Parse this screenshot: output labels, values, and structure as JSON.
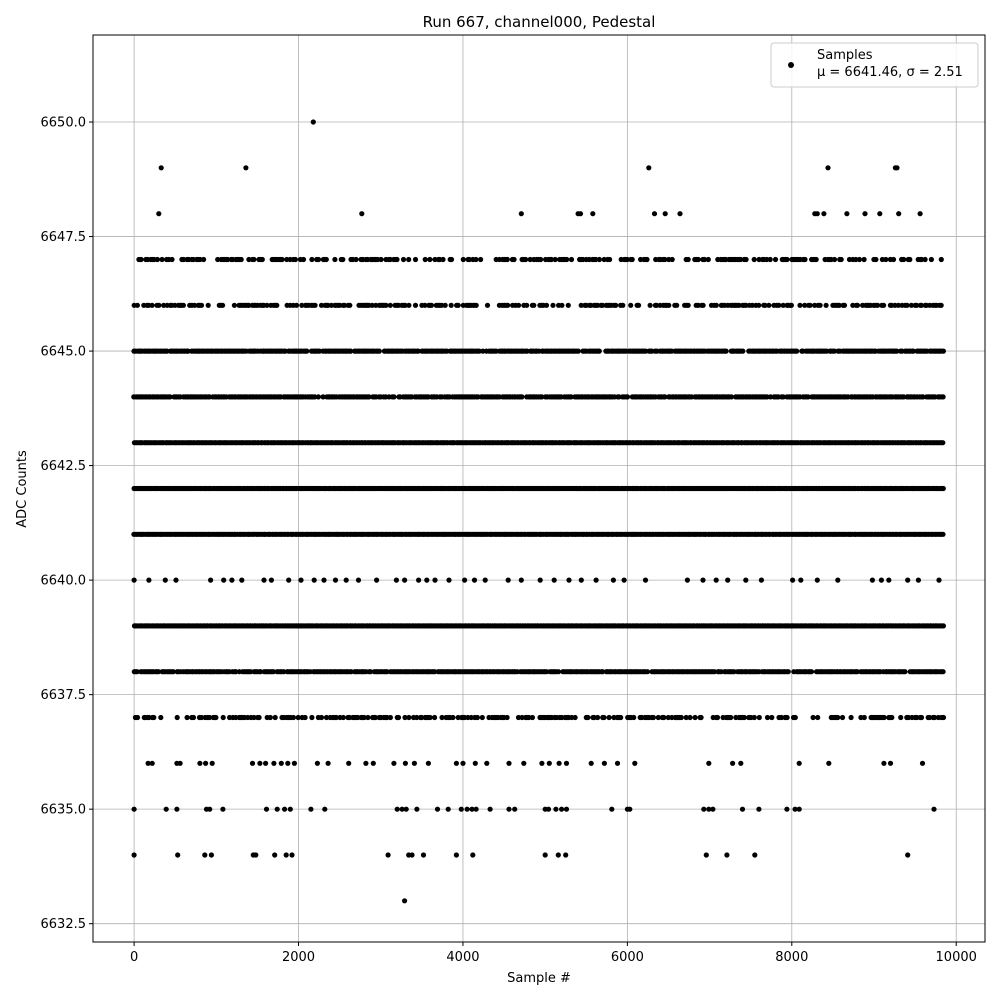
{
  "chart_data": {
    "type": "scatter",
    "title": "Run 667, channel000, Pedestal",
    "xlabel": "Sample #",
    "ylabel": "ADC Counts",
    "xlim": [
      -500,
      10350
    ],
    "ylim": [
      6632.1,
      6651.9
    ],
    "xticks": [
      0,
      2000,
      4000,
      6000,
      8000,
      10000
    ],
    "xtick_labels": [
      "0",
      "2000",
      "4000",
      "6000",
      "8000",
      "10000"
    ],
    "yticks": [
      6632.5,
      6635.0,
      6637.5,
      6640.0,
      6642.5,
      6645.0,
      6647.5,
      6650.0
    ],
    "ytick_labels": [
      "6632.5",
      "6635.0",
      "6637.5",
      "6640.0",
      "6642.5",
      "6645.0",
      "6647.5",
      "6650.0"
    ],
    "grid": true,
    "legend_position": "top-right",
    "marker_color": "#000000",
    "series": [
      {
        "name": "Samples",
        "legend_line2": "μ = 6641.46, σ = 2.51",
        "points": [
          [
            2180,
            6650
          ],
          [
            330,
            6649
          ],
          [
            1360,
            6649
          ],
          [
            6260,
            6649
          ],
          [
            8440,
            6649
          ],
          [
            9260,
            6649
          ],
          [
            9280,
            6649
          ],
          [
            300,
            6648
          ],
          [
            2770,
            6648
          ],
          [
            4710,
            6648
          ],
          [
            5400,
            6648
          ],
          [
            5430,
            6648
          ],
          [
            5580,
            6648
          ],
          [
            6330,
            6648
          ],
          [
            6460,
            6648
          ],
          [
            6640,
            6648
          ],
          [
            8280,
            6648
          ],
          [
            8310,
            6648
          ],
          [
            8390,
            6648
          ],
          [
            8670,
            6648
          ],
          [
            8890,
            6648
          ],
          [
            9070,
            6648
          ],
          [
            9300,
            6648
          ],
          [
            9560,
            6648
          ],
          [
            3290,
            6633
          ],
          [
            0,
            6634
          ],
          [
            530,
            6634
          ],
          [
            860,
            6634
          ],
          [
            940,
            6634
          ],
          [
            1450,
            6634
          ],
          [
            1480,
            6634
          ],
          [
            1710,
            6634
          ],
          [
            1850,
            6634
          ],
          [
            1920,
            6634
          ],
          [
            3090,
            6634
          ],
          [
            3340,
            6634
          ],
          [
            3380,
            6634
          ],
          [
            3520,
            6634
          ],
          [
            3920,
            6634
          ],
          [
            4120,
            6634
          ],
          [
            5000,
            6634
          ],
          [
            5160,
            6634
          ],
          [
            5250,
            6634
          ],
          [
            6960,
            6634
          ],
          [
            7210,
            6634
          ],
          [
            7550,
            6634
          ],
          [
            9410,
            6634
          ],
          [
            0,
            6635
          ],
          [
            390,
            6635
          ],
          [
            520,
            6635
          ],
          [
            880,
            6635
          ],
          [
            920,
            6635
          ],
          [
            1080,
            6635
          ],
          [
            1610,
            6635
          ],
          [
            1740,
            6635
          ],
          [
            1830,
            6635
          ],
          [
            1900,
            6635
          ],
          [
            2150,
            6635
          ],
          [
            2320,
            6635
          ],
          [
            3200,
            6635
          ],
          [
            3260,
            6635
          ],
          [
            3310,
            6635
          ],
          [
            3440,
            6635
          ],
          [
            3690,
            6635
          ],
          [
            3820,
            6635
          ],
          [
            3980,
            6635
          ],
          [
            4050,
            6635
          ],
          [
            4110,
            6635
          ],
          [
            4160,
            6635
          ],
          [
            4330,
            6635
          ],
          [
            4560,
            6635
          ],
          [
            4630,
            6635
          ],
          [
            5000,
            6635
          ],
          [
            5040,
            6635
          ],
          [
            5130,
            6635
          ],
          [
            5200,
            6635
          ],
          [
            5260,
            6635
          ],
          [
            5810,
            6635
          ],
          [
            6000,
            6635
          ],
          [
            6030,
            6635
          ],
          [
            6930,
            6635
          ],
          [
            6990,
            6635
          ],
          [
            7040,
            6635
          ],
          [
            7400,
            6635
          ],
          [
            7600,
            6635
          ],
          [
            7940,
            6635
          ],
          [
            8040,
            6635
          ],
          [
            8090,
            6635
          ],
          [
            9730,
            6635
          ],
          [
            170,
            6636
          ],
          [
            220,
            6636
          ],
          [
            520,
            6636
          ],
          [
            560,
            6636
          ],
          [
            800,
            6636
          ],
          [
            870,
            6636
          ],
          [
            950,
            6636
          ],
          [
            1440,
            6636
          ],
          [
            1530,
            6636
          ],
          [
            1600,
            6636
          ],
          [
            1700,
            6636
          ],
          [
            1790,
            6636
          ],
          [
            1870,
            6636
          ],
          [
            1950,
            6636
          ],
          [
            2230,
            6636
          ],
          [
            2360,
            6636
          ],
          [
            2610,
            6636
          ],
          [
            2820,
            6636
          ],
          [
            2910,
            6636
          ],
          [
            3160,
            6636
          ],
          [
            3300,
            6636
          ],
          [
            3410,
            6636
          ],
          [
            3580,
            6636
          ],
          [
            3920,
            6636
          ],
          [
            4000,
            6636
          ],
          [
            4150,
            6636
          ],
          [
            4290,
            6636
          ],
          [
            4560,
            6636
          ],
          [
            4740,
            6636
          ],
          [
            4960,
            6636
          ],
          [
            5050,
            6636
          ],
          [
            5170,
            6636
          ],
          [
            5260,
            6636
          ],
          [
            5560,
            6636
          ],
          [
            5720,
            6636
          ],
          [
            5880,
            6636
          ],
          [
            6090,
            6636
          ],
          [
            6990,
            6636
          ],
          [
            7280,
            6636
          ],
          [
            7380,
            6636
          ],
          [
            8090,
            6636
          ],
          [
            8450,
            6636
          ],
          [
            9120,
            6636
          ],
          [
            9200,
            6636
          ],
          [
            9590,
            6636
          ],
          [
            0,
            6640
          ],
          [
            180,
            6640
          ],
          [
            380,
            6640
          ],
          [
            510,
            6640
          ],
          [
            930,
            6640
          ],
          [
            1090,
            6640
          ],
          [
            1190,
            6640
          ],
          [
            1310,
            6640
          ],
          [
            1580,
            6640
          ],
          [
            1670,
            6640
          ],
          [
            1880,
            6640
          ],
          [
            2030,
            6640
          ],
          [
            2190,
            6640
          ],
          [
            2310,
            6640
          ],
          [
            2450,
            6640
          ],
          [
            2580,
            6640
          ],
          [
            2730,
            6640
          ],
          [
            2950,
            6640
          ],
          [
            3190,
            6640
          ],
          [
            3290,
            6640
          ],
          [
            3460,
            6640
          ],
          [
            3560,
            6640
          ],
          [
            3660,
            6640
          ],
          [
            3830,
            6640
          ],
          [
            4020,
            6640
          ],
          [
            4140,
            6640
          ],
          [
            4270,
            6640
          ],
          [
            4550,
            6640
          ],
          [
            4710,
            6640
          ],
          [
            4940,
            6640
          ],
          [
            5110,
            6640
          ],
          [
            5290,
            6640
          ],
          [
            5440,
            6640
          ],
          [
            5620,
            6640
          ],
          [
            5830,
            6640
          ],
          [
            5960,
            6640
          ],
          [
            6220,
            6640
          ],
          [
            6730,
            6640
          ],
          [
            6920,
            6640
          ],
          [
            7080,
            6640
          ],
          [
            7220,
            6640
          ],
          [
            7440,
            6640
          ],
          [
            7630,
            6640
          ],
          [
            8010,
            6640
          ],
          [
            8110,
            6640
          ],
          [
            8310,
            6640
          ],
          [
            8560,
            6640
          ],
          [
            8980,
            6640
          ],
          [
            9090,
            6640
          ],
          [
            9180,
            6640
          ],
          [
            9410,
            6640
          ],
          [
            9540,
            6640
          ],
          [
            9790,
            6640
          ]
        ],
        "dense_bands": [
          {
            "y": 6637,
            "x_start": 0,
            "x_end": 9850,
            "density": 0.5,
            "seed": 11
          },
          {
            "y": 6638,
            "x_start": 0,
            "x_end": 9850,
            "density": 0.9,
            "seed": 12
          },
          {
            "y": 6639,
            "x_start": 0,
            "x_end": 9850,
            "density": 1.0,
            "seed": 13
          },
          {
            "y": 6641,
            "x_start": 0,
            "x_end": 9850,
            "density": 1.0,
            "seed": 14
          },
          {
            "y": 6642,
            "x_start": 0,
            "x_end": 9850,
            "density": 1.0,
            "seed": 15
          },
          {
            "y": 6643,
            "x_start": 0,
            "x_end": 9850,
            "density": 1.0,
            "seed": 16
          },
          {
            "y": 6644,
            "x_start": 0,
            "x_end": 9850,
            "density": 0.9,
            "seed": 17
          },
          {
            "y": 6645,
            "x_start": 0,
            "x_end": 9850,
            "density": 0.9,
            "seed": 18
          },
          {
            "y": 6646,
            "x_start": 0,
            "x_end": 9850,
            "density": 0.55,
            "seed": 19
          },
          {
            "y": 6647,
            "x_start": 0,
            "x_end": 9850,
            "density": 0.45,
            "seed": 20
          }
        ]
      }
    ]
  }
}
